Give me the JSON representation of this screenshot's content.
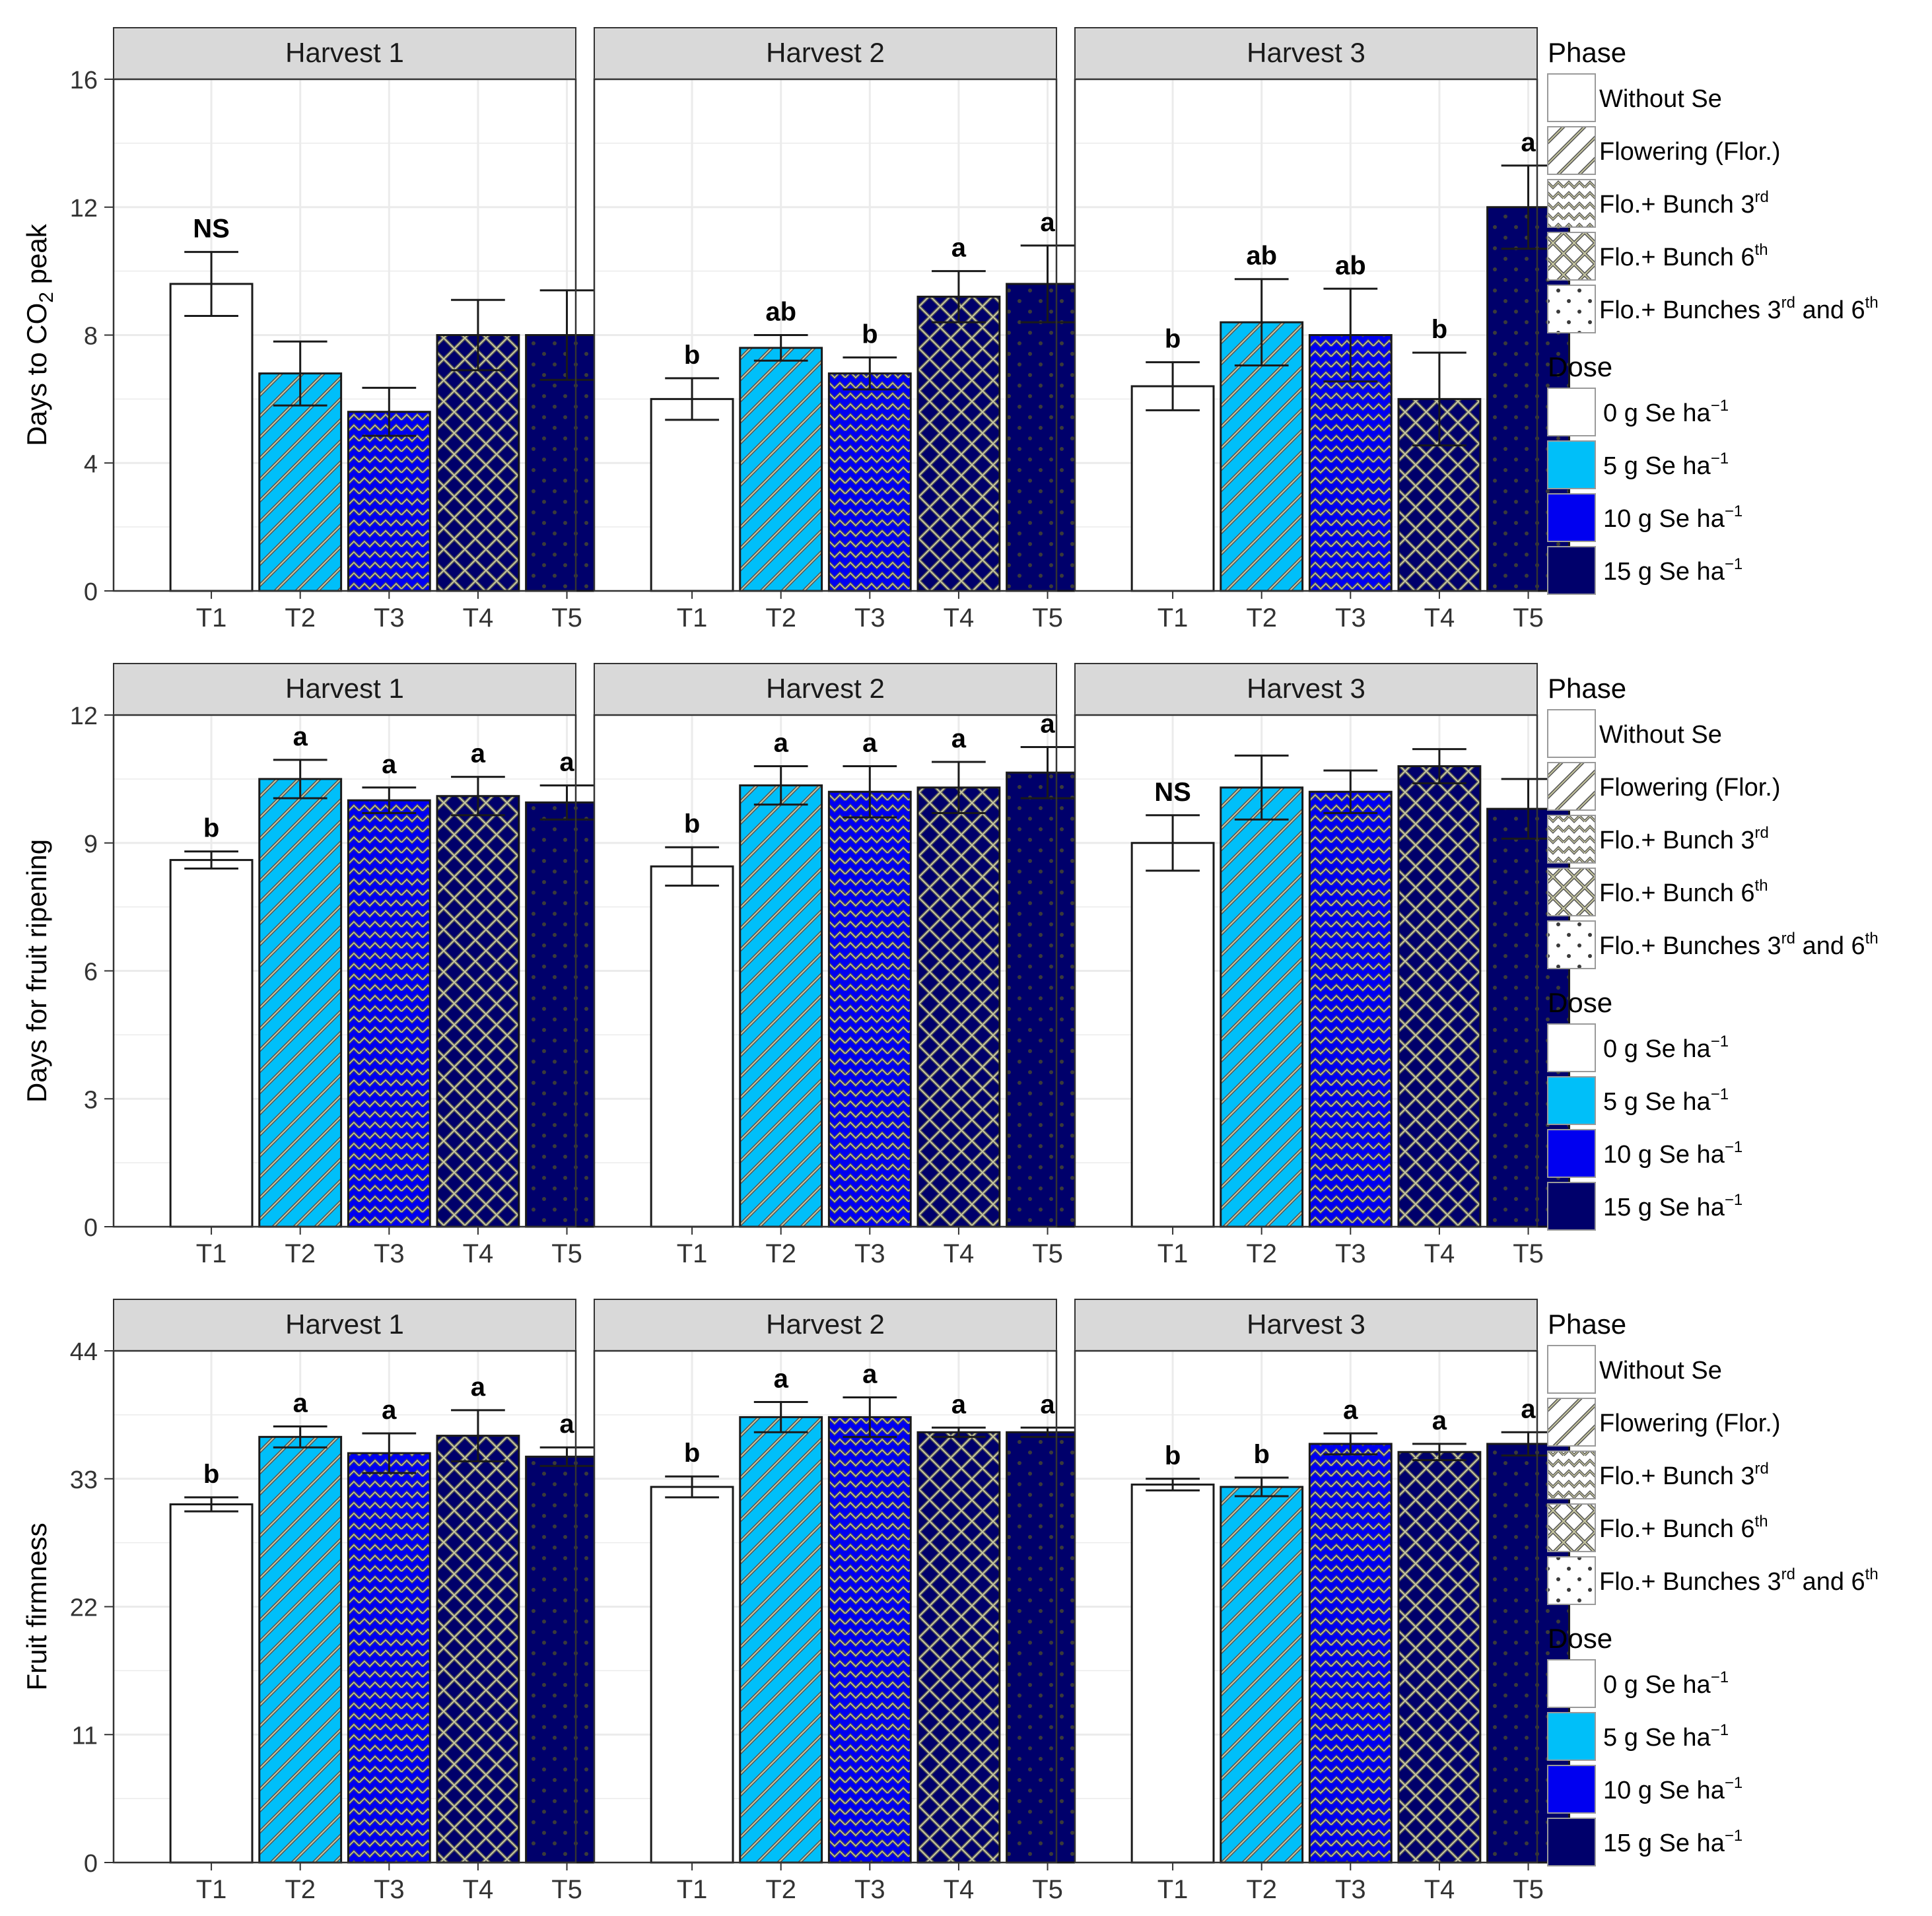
{
  "colors": {
    "dose_0": "#FFFFFF",
    "dose_5": "#00BFF9",
    "dose_10": "#0000F0",
    "dose_15": "#00006B",
    "strip_fill": "#D9D9D9",
    "grid": "#EBEBEB",
    "pattern": "#C8C8A0"
  },
  "categories": [
    "T1",
    "T2",
    "T3",
    "T4",
    "T5"
  ],
  "bar_dose_index": [
    0,
    1,
    2,
    3,
    3
  ],
  "bar_phase_index": [
    0,
    1,
    2,
    3,
    4
  ],
  "legend": {
    "phase_title": "Phase",
    "phase_items": [
      {
        "label": "Without Se",
        "pattern": "none"
      },
      {
        "label": "Flowering (Flor.)",
        "pattern": "stripe"
      },
      {
        "label": "Flo.+ Bunch 3",
        "sup": "rd",
        "tail": "",
        "pattern": "zigzag"
      },
      {
        "label": "Flo.+ Bunch 6",
        "sup": "th",
        "tail": "",
        "pattern": "crosshatch"
      },
      {
        "label": "Flo.+ Bunches 3",
        "sup": "rd",
        "tail": " and 6",
        "sup2": "th",
        "pattern": "circle"
      }
    ],
    "dose_title": "Dose",
    "dose_items": [
      {
        "label": "0 g Se ha",
        "sup": "−1"
      },
      {
        "label": "5 g Se ha",
        "sup": "−1"
      },
      {
        "label": "10 g Se ha",
        "sup": "−1"
      },
      {
        "label": "15 g Se ha",
        "sup": "−1"
      }
    ]
  },
  "chart_data": [
    {
      "type": "bar",
      "ylabel": "Days to CO",
      "ylabel_sub": "2",
      "ylabel_tail": " peak",
      "ylim": [
        0,
        16
      ],
      "yticks": [
        0,
        4,
        8,
        12,
        16
      ],
      "categories": [
        "T1",
        "T2",
        "T3",
        "T4",
        "T5"
      ],
      "facets": [
        {
          "title": "Harvest 1",
          "values": [
            9.6,
            6.8,
            5.6,
            8.0,
            8.0
          ],
          "errors": [
            1.0,
            1.0,
            0.75,
            1.1,
            1.4
          ],
          "labels": [
            "NS",
            "",
            "",
            "",
            ""
          ]
        },
        {
          "title": "Harvest 2",
          "values": [
            6.0,
            7.6,
            6.8,
            9.2,
            9.6
          ],
          "errors": [
            0.65,
            0.4,
            0.5,
            0.8,
            1.2
          ],
          "labels": [
            "b",
            "ab",
            "b",
            "a",
            "a"
          ]
        },
        {
          "title": "Harvest 3",
          "values": [
            6.4,
            8.4,
            8.0,
            6.0,
            12.0
          ],
          "errors": [
            0.75,
            1.35,
            1.45,
            1.45,
            1.3
          ],
          "labels": [
            "b",
            "ab",
            "ab",
            "b",
            "a"
          ]
        }
      ]
    },
    {
      "type": "bar",
      "ylabel": "Days for fruit ripening",
      "ylim": [
        0,
        12
      ],
      "yticks": [
        0,
        3,
        6,
        9,
        12
      ],
      "categories": [
        "T1",
        "T2",
        "T3",
        "T4",
        "T5"
      ],
      "facets": [
        {
          "title": "Harvest 1",
          "values": [
            8.6,
            10.5,
            10.0,
            10.1,
            9.95
          ],
          "errors": [
            0.2,
            0.45,
            0.3,
            0.45,
            0.4
          ],
          "labels": [
            "b",
            "a",
            "a",
            "a",
            "a"
          ]
        },
        {
          "title": "Harvest 2",
          "values": [
            8.45,
            10.35,
            10.2,
            10.3,
            10.65
          ],
          "errors": [
            0.45,
            0.45,
            0.6,
            0.6,
            0.6
          ],
          "labels": [
            "b",
            "a",
            "a",
            "a",
            "a"
          ]
        },
        {
          "title": "Harvest 3",
          "values": [
            9.0,
            10.3,
            10.2,
            10.8,
            9.8
          ],
          "errors": [
            0.65,
            0.75,
            0.5,
            0.4,
            0.7
          ],
          "labels": [
            "NS",
            "",
            "",
            "",
            ""
          ]
        }
      ]
    },
    {
      "type": "bar",
      "ylabel": "Fruit firmness",
      "ylim": [
        0,
        44
      ],
      "yticks": [
        0,
        11,
        22,
        33,
        44
      ],
      "categories": [
        "T1",
        "T2",
        "T3",
        "T4",
        "T5"
      ],
      "facets": [
        {
          "title": "Harvest 1",
          "values": [
            30.8,
            36.6,
            35.2,
            36.7,
            34.9
          ],
          "errors": [
            0.6,
            0.9,
            1.7,
            2.2,
            0.8
          ],
          "labels": [
            "b",
            "a",
            "a",
            "a",
            "a"
          ]
        },
        {
          "title": "Harvest 2",
          "values": [
            32.3,
            38.3,
            38.3,
            37.0,
            37.0
          ],
          "errors": [
            0.9,
            1.3,
            1.7,
            0.4,
            0.4
          ],
          "labels": [
            "b",
            "a",
            "a",
            "a",
            "a"
          ]
        },
        {
          "title": "Harvest 3",
          "values": [
            32.5,
            32.3,
            36.0,
            35.3,
            36.0
          ],
          "errors": [
            0.5,
            0.8,
            0.9,
            0.7,
            1.0
          ],
          "labels": [
            "b",
            "b",
            "a",
            "a",
            "a"
          ]
        }
      ]
    }
  ]
}
